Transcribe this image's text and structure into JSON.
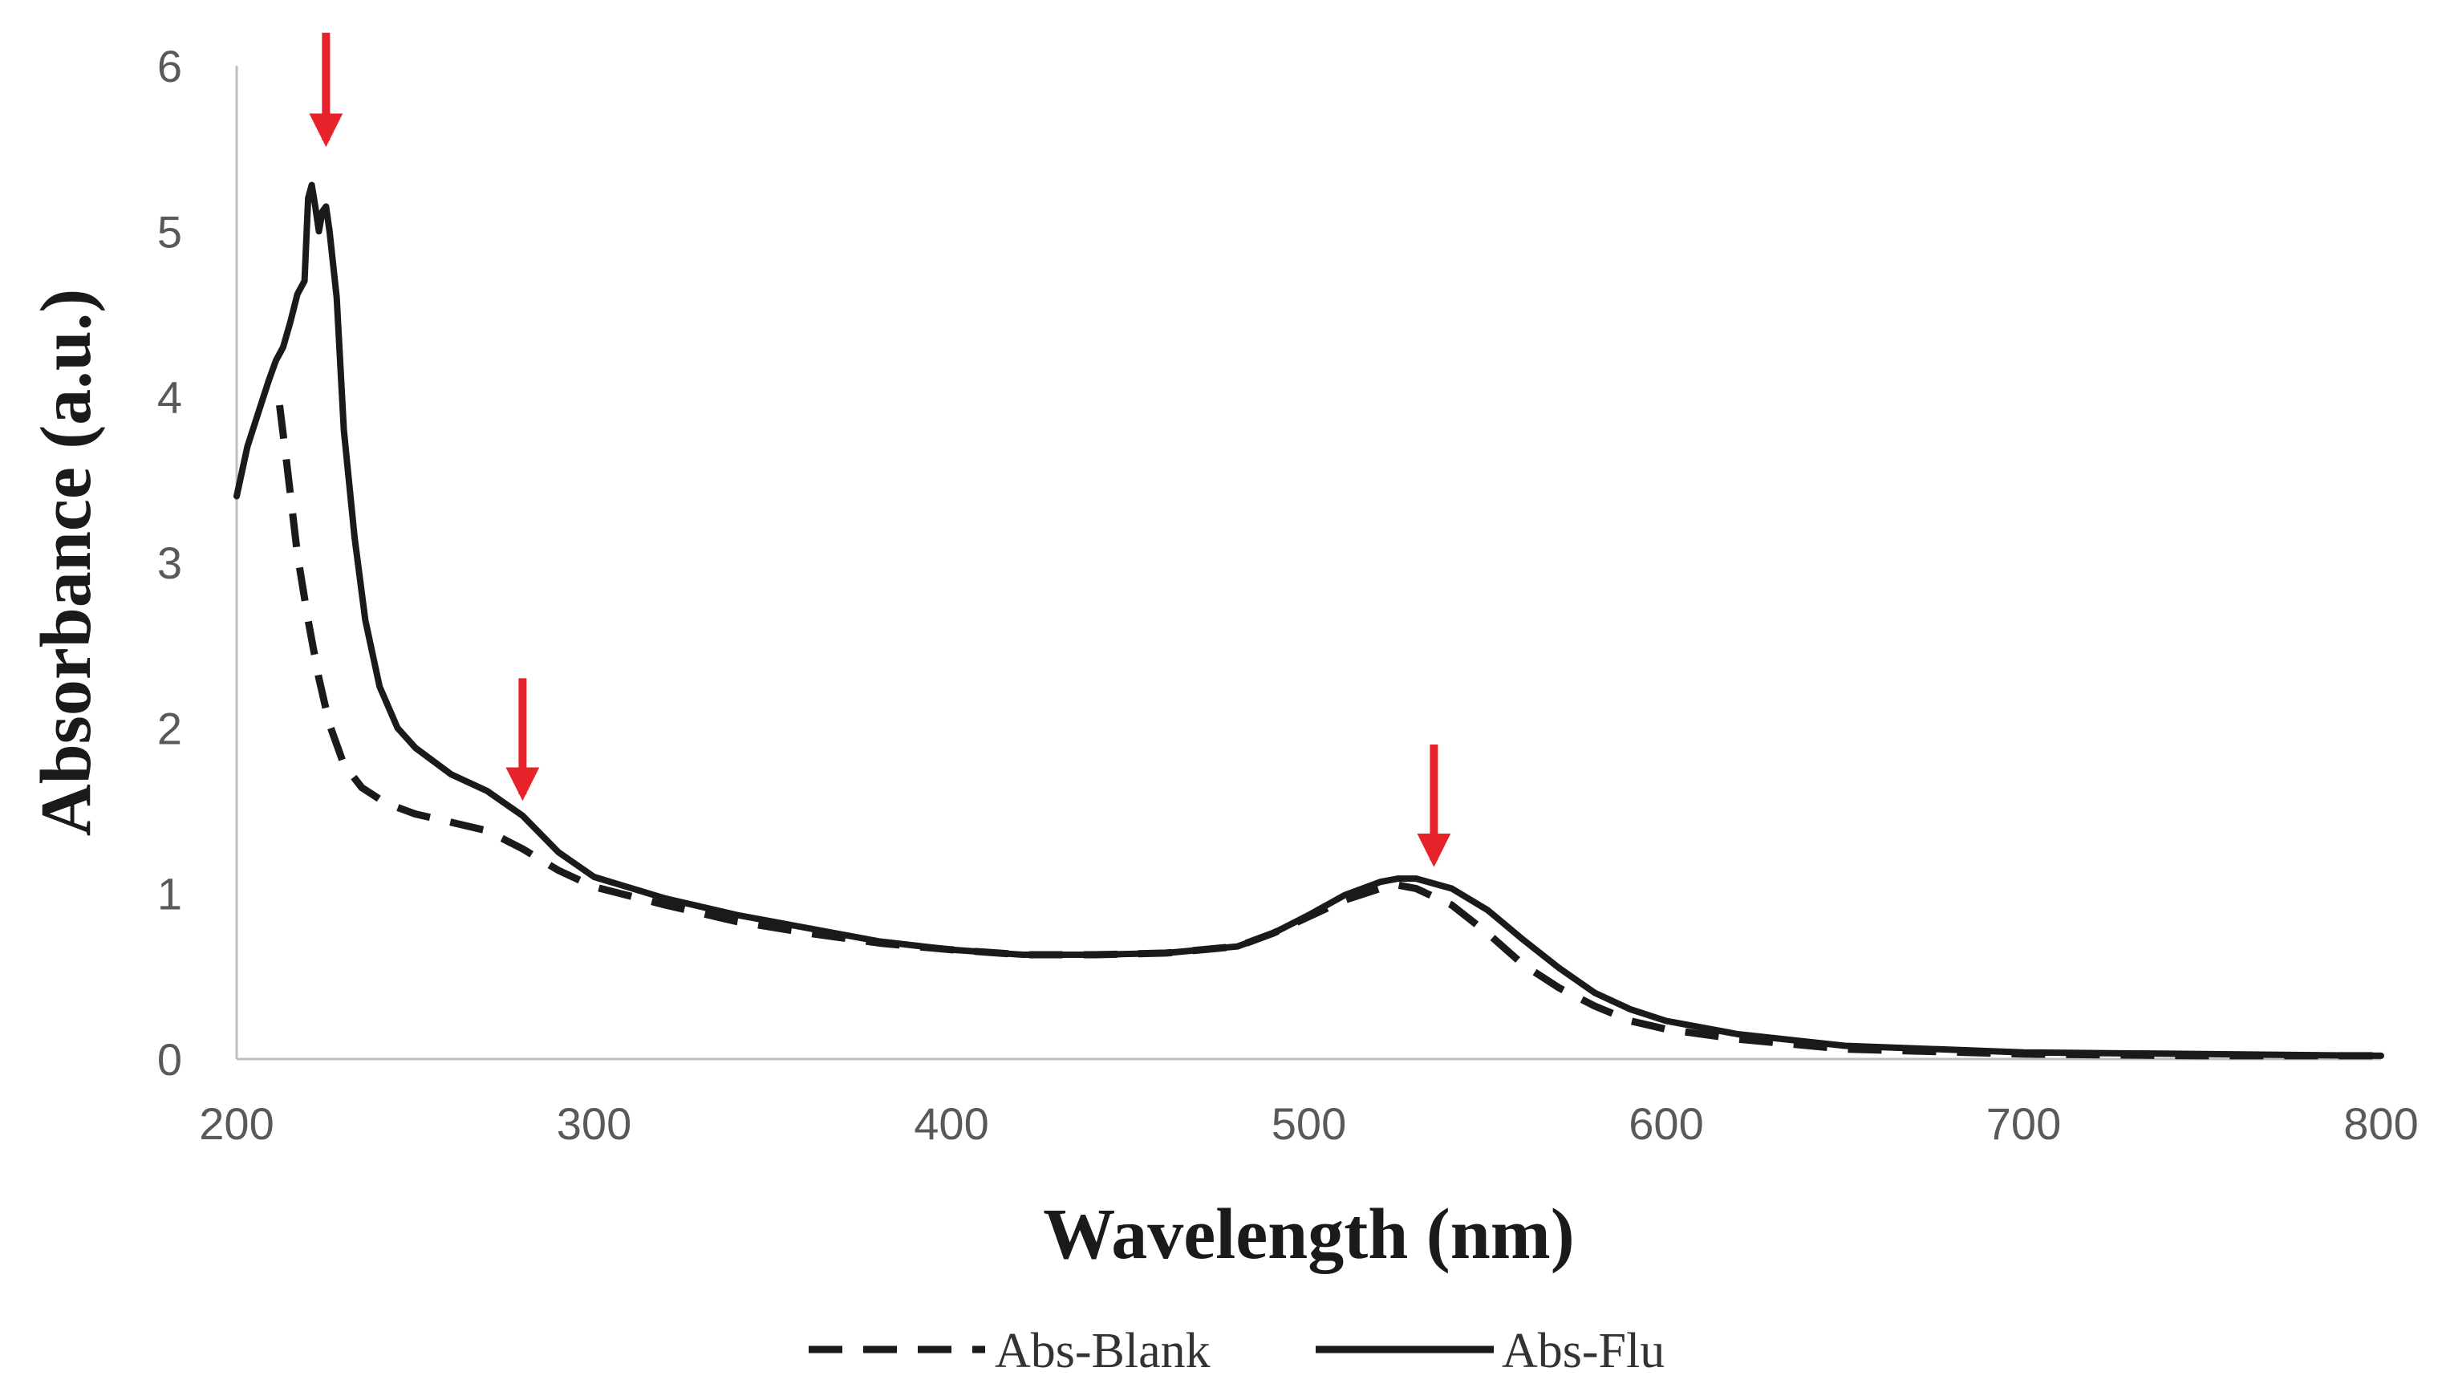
{
  "chart_data": {
    "type": "line",
    "title": "",
    "xlabel": "Wavelength (nm)",
    "ylabel": "Absorbance (a.u.)",
    "xlim": [
      200,
      800
    ],
    "ylim": [
      0,
      6
    ],
    "xticks": [
      200,
      300,
      400,
      500,
      600,
      700,
      800
    ],
    "yticks": [
      0,
      1,
      2,
      3,
      4,
      5,
      6
    ],
    "grid": false,
    "legend_position": "bottom-center",
    "series": [
      {
        "name": "Abs-Blank",
        "style": "dashed",
        "color": "#1a1a1a",
        "x": [
          212,
          214,
          217,
          220,
          223,
          226,
          230,
          235,
          240,
          245,
          250,
          260,
          270,
          280,
          290,
          300,
          320,
          340,
          360,
          380,
          400,
          420,
          440,
          460,
          480,
          490,
          500,
          510,
          520,
          525,
          530,
          540,
          550,
          560,
          570,
          580,
          590,
          600,
          620,
          650,
          700,
          750,
          800
        ],
        "y": [
          3.95,
          3.6,
          3.05,
          2.65,
          2.3,
          2.02,
          1.78,
          1.64,
          1.57,
          1.52,
          1.48,
          1.43,
          1.38,
          1.27,
          1.14,
          1.04,
          0.93,
          0.83,
          0.76,
          0.7,
          0.66,
          0.63,
          0.63,
          0.64,
          0.68,
          0.76,
          0.86,
          0.96,
          1.03,
          1.05,
          1.03,
          0.93,
          0.76,
          0.57,
          0.43,
          0.32,
          0.23,
          0.18,
          0.12,
          0.06,
          0.03,
          0.02,
          0.02
        ]
      },
      {
        "name": "Abs-Flu",
        "style": "solid",
        "color": "#1a1a1a",
        "x": [
          200,
          203,
          206,
          209,
          211,
          213,
          215,
          217,
          219,
          220,
          221,
          222,
          223,
          224,
          225,
          226,
          228,
          230,
          233,
          236,
          240,
          245,
          250,
          260,
          270,
          280,
          290,
          300,
          320,
          340,
          360,
          380,
          400,
          420,
          440,
          460,
          480,
          490,
          500,
          510,
          520,
          525,
          530,
          540,
          550,
          560,
          570,
          580,
          590,
          600,
          620,
          650,
          700,
          750,
          800
        ],
        "y": [
          3.4,
          3.7,
          3.9,
          4.1,
          4.22,
          4.3,
          4.45,
          4.62,
          4.7,
          5.2,
          5.28,
          5.15,
          5.0,
          5.12,
          5.15,
          5.0,
          4.6,
          3.8,
          3.15,
          2.65,
          2.25,
          2.0,
          1.88,
          1.72,
          1.62,
          1.47,
          1.25,
          1.1,
          0.97,
          0.87,
          0.79,
          0.71,
          0.66,
          0.63,
          0.63,
          0.64,
          0.68,
          0.76,
          0.87,
          0.99,
          1.07,
          1.09,
          1.09,
          1.03,
          0.9,
          0.72,
          0.55,
          0.4,
          0.3,
          0.23,
          0.15,
          0.08,
          0.04,
          0.03,
          0.02
        ]
      }
    ],
    "annotations": [
      {
        "type": "arrow",
        "color": "#e8222a",
        "x": 225,
        "y_tip": 5.55,
        "y_tail": 6.2
      },
      {
        "type": "arrow",
        "color": "#e8222a",
        "x": 280,
        "y_tip": 1.6,
        "y_tail": 2.3
      },
      {
        "type": "arrow",
        "color": "#e8222a",
        "x": 535,
        "y_tip": 1.2,
        "y_tail": 1.9
      }
    ]
  }
}
